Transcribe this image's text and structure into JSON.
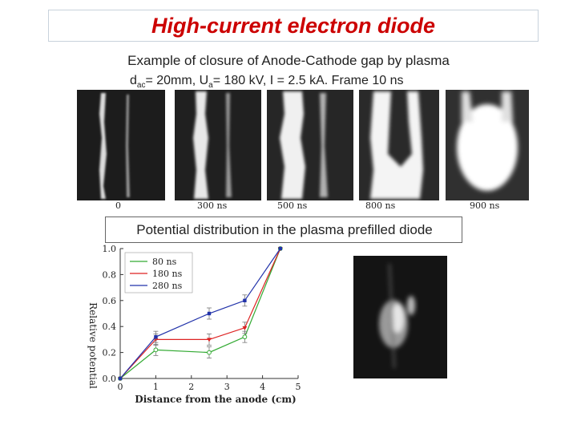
{
  "slide": {
    "title": "High-current electron diode",
    "subtitle": "Example of closure of Anode-Cathode gap by plasma",
    "params": {
      "d": "d",
      "d_sub": "ac",
      "d_val": "= 20mm, U",
      "u_sub": "a",
      "rest": "= 180 kV, I = 2.5 kA. Frame 10 ns"
    },
    "frame_labels": [
      "0",
      "300 ns",
      "500 ns",
      "800 ns",
      "900 ns"
    ],
    "potential_caption": "Potential distribution in the plasma prefilled diode"
  },
  "chart_data": {
    "type": "line",
    "title": "",
    "xlabel": "Distance from the anode (cm)",
    "ylabel": "Relative potential",
    "xlim": [
      0,
      5
    ],
    "ylim": [
      0,
      1.0
    ],
    "x_ticks": [
      "0",
      "1",
      "2",
      "3",
      "4",
      "5"
    ],
    "y_ticks": [
      "0.0",
      "0.2",
      "0.4",
      "0.6",
      "0.8",
      "1.0"
    ],
    "grid": false,
    "legend": "top-left",
    "series": [
      {
        "name": "80 ns",
        "color": "#33aa33",
        "marker": "circle",
        "x": [
          0,
          1,
          2.5,
          3.5,
          4.5
        ],
        "y": [
          0.0,
          0.22,
          0.2,
          0.32,
          1.0
        ]
      },
      {
        "name": "180 ns",
        "color": "#dd2222",
        "marker": "triangle",
        "x": [
          0,
          1,
          2.5,
          3.5,
          4.5
        ],
        "y": [
          0.0,
          0.3,
          0.3,
          0.39,
          1.0
        ]
      },
      {
        "name": "280 ns",
        "color": "#2233aa",
        "marker": "square",
        "x": [
          0,
          1,
          2.5,
          3.5,
          4.5
        ],
        "y": [
          0.0,
          0.32,
          0.5,
          0.6,
          1.0
        ]
      }
    ]
  }
}
